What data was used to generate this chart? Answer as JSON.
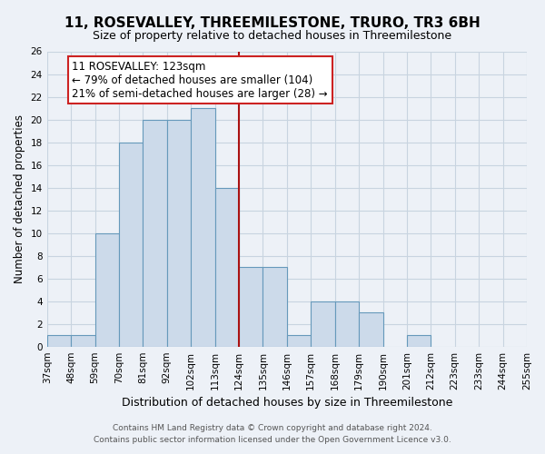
{
  "title": "11, ROSEVALLEY, THREEMILESTONE, TRURO, TR3 6BH",
  "subtitle": "Size of property relative to detached houses in Threemilestone",
  "xlabel": "Distribution of detached houses by size in Threemilestone",
  "ylabel": "Number of detached properties",
  "footer_line1": "Contains HM Land Registry data © Crown copyright and database right 2024.",
  "footer_line2": "Contains public sector information licensed under the Open Government Licence v3.0.",
  "bin_labels": [
    "37sqm",
    "48sqm",
    "59sqm",
    "70sqm",
    "81sqm",
    "92sqm",
    "102sqm",
    "113sqm",
    "124sqm",
    "135sqm",
    "146sqm",
    "157sqm",
    "168sqm",
    "179sqm",
    "190sqm",
    "201sqm",
    "212sqm",
    "223sqm",
    "233sqm",
    "244sqm",
    "255sqm"
  ],
  "bar_values": [
    1,
    1,
    10,
    18,
    20,
    20,
    21,
    14,
    7,
    7,
    1,
    4,
    4,
    3,
    0,
    1,
    0,
    0,
    0,
    0
  ],
  "bar_color": "#ccdaea",
  "bar_edge_color": "#6699bb",
  "vline_x_index": 8,
  "vline_color": "#aa1111",
  "annotation_text": "11 ROSEVALLEY: 123sqm\n← 79% of detached houses are smaller (104)\n21% of semi-detached houses are larger (28) →",
  "annotation_box_facecolor": "#ffffff",
  "annotation_box_edgecolor": "#cc2222",
  "ylim": [
    0,
    26
  ],
  "yticks": [
    0,
    2,
    4,
    6,
    8,
    10,
    12,
    14,
    16,
    18,
    20,
    22,
    24,
    26
  ],
  "grid_color": "#c8d4e0",
  "bg_color": "#edf1f7",
  "title_fontsize": 11,
  "subtitle_fontsize": 9,
  "xlabel_fontsize": 9,
  "ylabel_fontsize": 8.5,
  "tick_fontsize": 7.5,
  "annotation_fontsize": 8.5,
  "footer_fontsize": 6.5
}
